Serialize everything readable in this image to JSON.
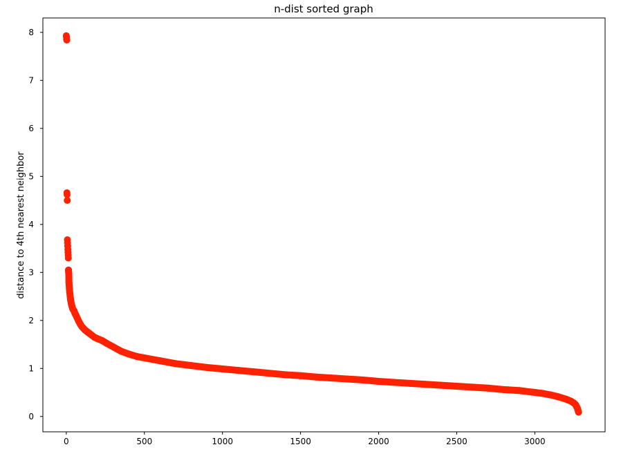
{
  "chart_data": {
    "type": "scatter",
    "title": "n-dist sorted graph",
    "xlabel": "",
    "ylabel": "distance to 4th nearest neighbor",
    "xlim": [
      -150,
      3450
    ],
    "ylim": [
      -0.32,
      8.3
    ],
    "xticks": [
      0,
      500,
      1000,
      1500,
      2000,
      2500,
      3000
    ],
    "yticks": [
      0,
      1,
      2,
      3,
      4,
      5,
      6,
      7,
      8
    ],
    "grid": false,
    "marker_color": "#ff2200",
    "series": [
      {
        "x": [
          0,
          1,
          2,
          3,
          4,
          5,
          6,
          7,
          8,
          9,
          10,
          11,
          12,
          13,
          14,
          15,
          16,
          17,
          18,
          20,
          22,
          25,
          28,
          32,
          36,
          40,
          45,
          50,
          55,
          60,
          70,
          80,
          90,
          100,
          120,
          140,
          160,
          180,
          200,
          230,
          260,
          300,
          350,
          400,
          450,
          500,
          600,
          700,
          800,
          900,
          1000,
          1100,
          1200,
          1300,
          1400,
          1500,
          1600,
          1700,
          1800,
          1900,
          2000,
          2100,
          2200,
          2300,
          2400,
          2500,
          2600,
          2700,
          2800,
          2900,
          3000,
          3050,
          3100,
          3150,
          3200,
          3230,
          3250,
          3260,
          3265,
          3270,
          3275,
          3280
        ],
        "y": [
          7.93,
          7.9,
          7.86,
          7.84,
          4.66,
          4.62,
          4.5,
          3.68,
          3.62,
          3.55,
          3.48,
          3.42,
          3.36,
          3.3,
          3.05,
          3.0,
          2.97,
          2.8,
          2.75,
          2.65,
          2.58,
          2.5,
          2.42,
          2.35,
          2.3,
          2.25,
          2.22,
          2.2,
          2.15,
          2.12,
          2.05,
          1.98,
          1.92,
          1.87,
          1.8,
          1.75,
          1.7,
          1.65,
          1.62,
          1.58,
          1.52,
          1.45,
          1.36,
          1.3,
          1.25,
          1.22,
          1.16,
          1.1,
          1.06,
          1.02,
          0.99,
          0.96,
          0.93,
          0.9,
          0.87,
          0.85,
          0.82,
          0.8,
          0.78,
          0.76,
          0.73,
          0.71,
          0.69,
          0.67,
          0.65,
          0.63,
          0.61,
          0.59,
          0.56,
          0.54,
          0.5,
          0.48,
          0.45,
          0.41,
          0.36,
          0.32,
          0.28,
          0.25,
          0.22,
          0.19,
          0.15,
          0.09
        ]
      }
    ]
  }
}
